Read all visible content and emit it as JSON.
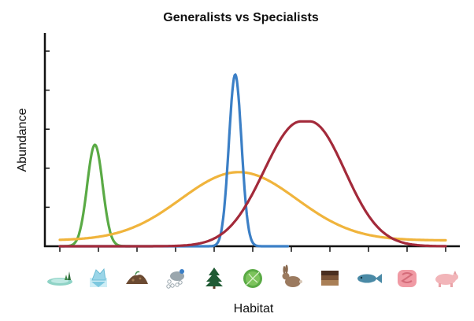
{
  "chart_data": {
    "type": "line",
    "title": "Generalists vs Specialists",
    "xlabel": "Habitat",
    "ylabel": "Abundance",
    "xlim": [
      0,
      11
    ],
    "ylim": [
      0,
      5
    ],
    "x_tick_count": 11,
    "y_tick_count": 5,
    "grid": false,
    "legend": "none",
    "habitat_icons": [
      "pond-icon",
      "iceberg-icon",
      "soil-mound-icon",
      "water-droplets-icon",
      "pine-tree-icon",
      "cabbage-leaf-icon",
      "rabbit-icon",
      "soil-layers-icon",
      "fish-icon",
      "intestine-icon",
      "pig-icon"
    ],
    "series": [
      {
        "color": "#5aaa45",
        "kind": "gaussian",
        "center": 1.0,
        "peak": 2.6,
        "baseline": 0.0,
        "sigma": 0.22,
        "x_range": [
          0.0,
          2.0
        ]
      },
      {
        "color": "#f0b43c",
        "kind": "gaussian",
        "center": 5.1,
        "peak": 1.9,
        "baseline": 0.15,
        "sigma": 1.65,
        "x_range": [
          0.0,
          11.0
        ]
      },
      {
        "color": "#3b7fc6",
        "kind": "gaussian",
        "center": 5.0,
        "peak": 4.4,
        "baseline": 0.0,
        "sigma": 0.18,
        "x_range": [
          0.0,
          6.5
        ]
      },
      {
        "color": "#a32a3a",
        "kind": "skewed",
        "center": 7.0,
        "peak": 3.2,
        "baseline": 0.0,
        "sigma_left": 1.05,
        "sigma_right": 1.0,
        "plateau": 0.25,
        "x_range": [
          0.0,
          11.0
        ]
      }
    ]
  }
}
